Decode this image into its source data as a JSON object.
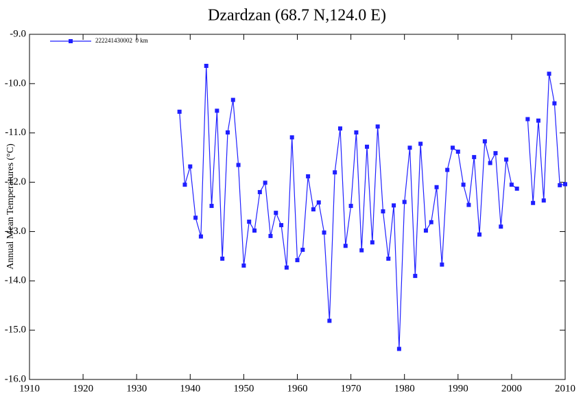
{
  "chart_data": {
    "type": "line",
    "title": "Dzardzan (68.7 N,124.0 E)",
    "ylabel": "Annual Mean Temperatures (°C)",
    "x": [
      1938,
      1939,
      1940,
      1941,
      1942,
      1943,
      1944,
      1945,
      1946,
      1947,
      1948,
      1949,
      1950,
      1951,
      1952,
      1953,
      1954,
      1955,
      1956,
      1957,
      1958,
      1959,
      1960,
      1961,
      1962,
      1963,
      1964,
      1965,
      1966,
      1967,
      1968,
      1969,
      1970,
      1971,
      1972,
      1973,
      1974,
      1975,
      1976,
      1977,
      1978,
      1979,
      1980,
      1981,
      1982,
      1983,
      1984,
      1985,
      1986,
      1987,
      1988,
      1989,
      1990,
      1991,
      1992,
      1993,
      1994,
      1995,
      1996,
      1997,
      1998,
      1999,
      2000,
      2001,
      2002,
      2003,
      2004,
      2005,
      2006,
      2007,
      2008,
      2009,
      2010
    ],
    "series": [
      {
        "name": "222241430002  0 km",
        "color": "#1f1fff",
        "values": [
          -10.57,
          -12.05,
          -11.68,
          -12.72,
          -13.1,
          -9.64,
          -12.48,
          -10.55,
          -13.55,
          -10.99,
          -10.33,
          -11.65,
          -13.69,
          -12.8,
          -12.98,
          -12.2,
          -12.01,
          -13.09,
          -12.62,
          -12.87,
          -13.73,
          -11.09,
          -13.58,
          -13.37,
          -11.88,
          -12.55,
          -12.41,
          -13.02,
          -14.81,
          -11.8,
          -10.91,
          -13.29,
          -12.48,
          -10.99,
          -13.38,
          -11.28,
          -13.22,
          -10.87,
          -12.59,
          -13.55,
          -12.47,
          -15.38,
          -12.4,
          -11.3,
          -13.9,
          -11.22,
          -12.98,
          -12.81,
          -12.1,
          -13.67,
          -11.75,
          -11.3,
          -11.38,
          -12.05,
          -12.46,
          -11.49,
          -13.06,
          -11.17,
          -11.61,
          -11.41,
          -12.9,
          -11.54,
          -12.05,
          -12.13,
          null,
          -10.72,
          -12.42,
          -10.75,
          -12.37,
          -9.8,
          -10.4,
          -12.06,
          -12.04
        ]
      }
    ],
    "xlim": [
      1910,
      2010
    ],
    "xticks": [
      1910,
      1920,
      1930,
      1940,
      1950,
      1960,
      1970,
      1980,
      1990,
      2000,
      2010
    ],
    "ylim": [
      -16,
      -9
    ],
    "yticks": [
      {
        "value": -16,
        "label": "-16.0"
      },
      {
        "value": -15,
        "label": "-15.0"
      },
      {
        "value": -14,
        "label": "-14.0"
      },
      {
        "value": -13,
        "label": "-13.0"
      },
      {
        "value": -12,
        "label": "-12.0"
      },
      {
        "value": -11,
        "label": "-11.0"
      },
      {
        "value": -10,
        "label": "-10.0"
      },
      {
        "value": -9,
        "label": "-9.0"
      }
    ],
    "legend": "upper left",
    "grid": false
  }
}
